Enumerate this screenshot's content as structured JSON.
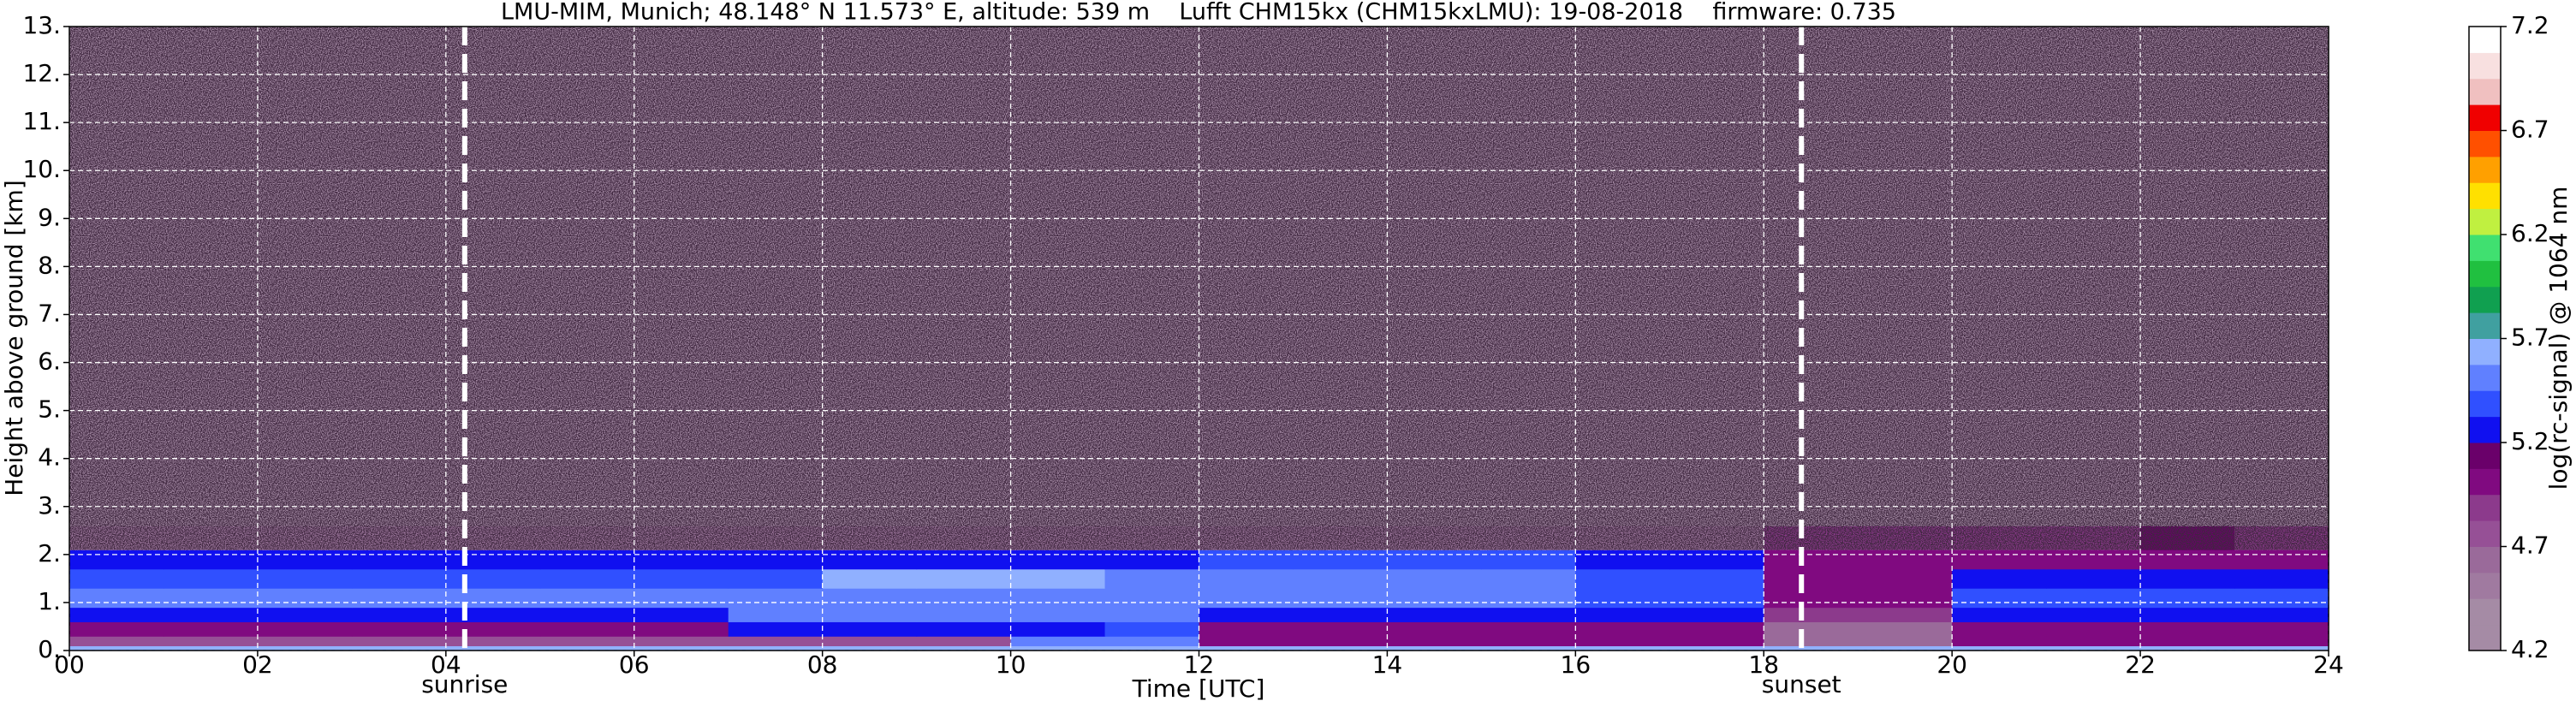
{
  "chart_data": {
    "type": "heatmap",
    "title": "LMU-MIM, Munich; 48.148° N 11.573° E, altitude: 539 m    Lufft CHM15kx (CHM15kxLMU): 19-08-2018    firmware: 0.735",
    "xlabel": "Time [UTC]",
    "ylabel": "Height above ground [km]",
    "colorbar_label": "log(rc-signal) @ 1064 nm",
    "x_bins": [
      0,
      1,
      2,
      3,
      4,
      5,
      6,
      7,
      8,
      9,
      10,
      11,
      12,
      13,
      14,
      15,
      16,
      17,
      18,
      19,
      20,
      21,
      22,
      23,
      24
    ],
    "y_bins": [
      0,
      0.1,
      0.3,
      0.6,
      0.9,
      1.3,
      1.7,
      2.1,
      2.6,
      13
    ],
    "z": [
      [
        5.6,
        5.6,
        5.6,
        5.6,
        5.6,
        5.6,
        5.6,
        5.6,
        5.6,
        5.6,
        5.6,
        5.6,
        5.6,
        5.6,
        5.6,
        5.6,
        5.6,
        5.6,
        5.6,
        5.6,
        5.6,
        5.6,
        5.6,
        5.6
      ],
      [
        4.8,
        4.8,
        4.8,
        4.8,
        4.8,
        4.8,
        4.8,
        4.8,
        4.8,
        4.8,
        5.5,
        5.5,
        5.0,
        5.0,
        5.0,
        5.0,
        5.0,
        5.0,
        4.6,
        4.6,
        5.0,
        5.0,
        5.0,
        5.0
      ],
      [
        5.0,
        5.0,
        5.0,
        5.0,
        5.0,
        5.0,
        5.0,
        5.3,
        5.3,
        5.3,
        5.3,
        5.4,
        5.0,
        5.0,
        5.0,
        5.0,
        5.0,
        5.0,
        4.6,
        4.6,
        5.0,
        5.0,
        5.0,
        5.0
      ],
      [
        5.25,
        5.25,
        5.25,
        5.25,
        5.25,
        5.25,
        5.25,
        5.45,
        5.45,
        5.45,
        5.45,
        5.45,
        5.3,
        5.3,
        5.3,
        5.3,
        5.3,
        5.3,
        4.9,
        4.9,
        5.25,
        5.25,
        5.25,
        5.25
      ],
      [
        5.45,
        5.45,
        5.45,
        5.45,
        5.45,
        5.45,
        5.45,
        5.45,
        5.45,
        5.45,
        5.45,
        5.45,
        5.45,
        5.45,
        5.45,
        5.45,
        5.4,
        5.4,
        5.0,
        5.0,
        5.35,
        5.35,
        5.35,
        5.35
      ],
      [
        5.4,
        5.4,
        5.4,
        5.4,
        5.4,
        5.4,
        5.4,
        5.4,
        5.6,
        5.6,
        5.6,
        5.5,
        5.5,
        5.5,
        5.5,
        5.5,
        5.4,
        5.4,
        5.0,
        5.0,
        5.3,
        5.3,
        5.3,
        5.3
      ],
      [
        5.25,
        5.25,
        5.25,
        5.25,
        5.25,
        5.25,
        5.25,
        5.25,
        5.25,
        5.25,
        5.25,
        5.25,
        5.35,
        5.35,
        5.35,
        5.35,
        5.2,
        5.2,
        4.95,
        4.95,
        4.95,
        4.95,
        4.95,
        4.95
      ],
      [
        4.5,
        4.5,
        4.5,
        4.5,
        4.5,
        4.5,
        4.5,
        4.5,
        4.5,
        4.5,
        4.5,
        4.5,
        4.5,
        4.5,
        4.5,
        4.5,
        4.5,
        4.5,
        4.85,
        4.85,
        4.85,
        4.85,
        5.1,
        4.85
      ],
      [
        4.3,
        4.3,
        4.3,
        4.3,
        4.3,
        4.3,
        4.3,
        4.3,
        4.3,
        4.3,
        4.3,
        4.3,
        4.3,
        4.3,
        4.3,
        4.3,
        4.3,
        4.3,
        4.3,
        4.3,
        4.3,
        4.3,
        4.3,
        4.3
      ]
    ],
    "xlim": [
      0,
      24
    ],
    "xticks": [
      {
        "value": 0,
        "label": "00"
      },
      {
        "value": 2,
        "label": "02"
      },
      {
        "value": 4,
        "label": "04"
      },
      {
        "value": 6,
        "label": "06"
      },
      {
        "value": 8,
        "label": "08"
      },
      {
        "value": 10,
        "label": "10"
      },
      {
        "value": 12,
        "label": "12"
      },
      {
        "value": 14,
        "label": "14"
      },
      {
        "value": 16,
        "label": "16"
      },
      {
        "value": 18,
        "label": "18"
      },
      {
        "value": 20,
        "label": "20"
      },
      {
        "value": 22,
        "label": "22"
      },
      {
        "value": 24,
        "label": "24"
      }
    ],
    "ylim": [
      0,
      13
    ],
    "yticks": [
      {
        "value": 0,
        "label": "0."
      },
      {
        "value": 1,
        "label": "1."
      },
      {
        "value": 2,
        "label": "2."
      },
      {
        "value": 3,
        "label": "3."
      },
      {
        "value": 4,
        "label": "4."
      },
      {
        "value": 5,
        "label": "5."
      },
      {
        "value": 6,
        "label": "6."
      },
      {
        "value": 7,
        "label": "7."
      },
      {
        "value": 8,
        "label": "8."
      },
      {
        "value": 9,
        "label": "9."
      },
      {
        "value": 10,
        "label": "10."
      },
      {
        "value": 11,
        "label": "11."
      },
      {
        "value": 12,
        "label": "12."
      },
      {
        "value": 13,
        "label": "13."
      }
    ],
    "zlim": [
      4.2,
      7.2
    ],
    "zticks": [
      4.2,
      4.7,
      5.2,
      5.7,
      6.2,
      6.7,
      7.2
    ],
    "colormap": [
      "#a58ba5",
      "#a58ba5",
      "#a07aa0",
      "#9a6a9a",
      "#965096",
      "#8c3a8c",
      "#800a80",
      "#6a006a",
      "#1010f0",
      "#3050ff",
      "#6080ff",
      "#90b0ff",
      "#40a0a0",
      "#10a050",
      "#20c040",
      "#40e070",
      "#c0f040",
      "#ffe000",
      "#ffa000",
      "#ff5000",
      "#f00000",
      "#f0c0c0",
      "#f8e0e0",
      "#ffffff"
    ],
    "grid": true,
    "annotations": [
      {
        "x": 4.2,
        "label": "sunrise"
      },
      {
        "x": 18.4,
        "label": "sunset"
      }
    ]
  }
}
